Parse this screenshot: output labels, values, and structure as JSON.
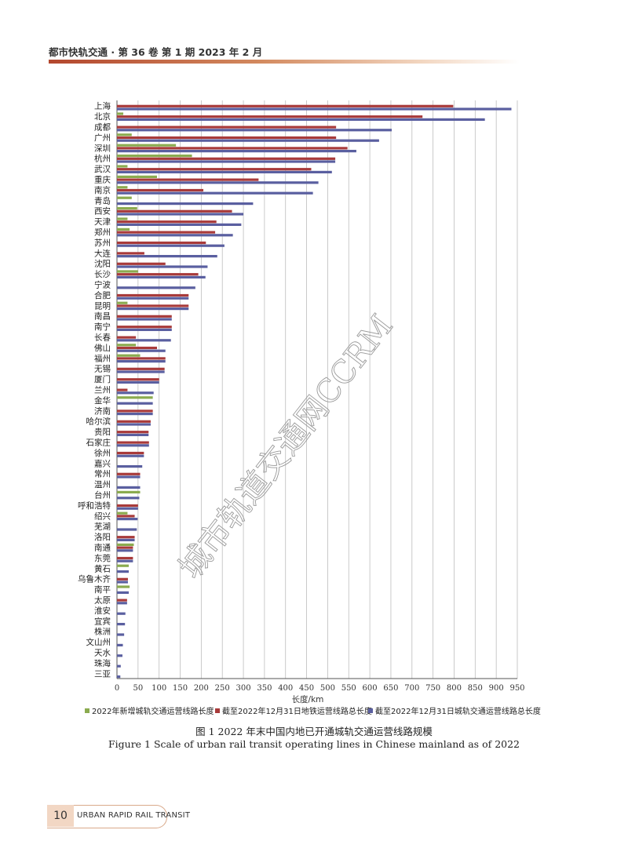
{
  "header": {
    "text": "都市快轨交通 · 第 36 卷  第 1 期  2023 年 2 月"
  },
  "figure": {
    "caption_cn": "图 1    2022 年末中国内地已开通城轨交通运营线路规模",
    "caption_en": "Figure 1    Scale of urban rail transit operating lines in Chinese mainland as of 2022"
  },
  "watermark": {
    "text": "城市轨道交通网CCRM"
  },
  "footer": {
    "page_number": "10",
    "journal_name": "URBAN RAPID RAIL TRANSIT"
  },
  "colors": {
    "new_2022": "#8bab4f",
    "metro_total": "#a83a3a",
    "urt_total": "#5a5fa0"
  },
  "chart_data": {
    "type": "bar",
    "orientation": "horizontal",
    "xlabel": "长度/km",
    "xlim": [
      0,
      950
    ],
    "xticks": [
      0,
      50,
      100,
      150,
      200,
      250,
      300,
      350,
      400,
      450,
      500,
      550,
      600,
      650,
      700,
      750,
      800,
      850,
      900,
      950
    ],
    "grid": true,
    "legend_position": "bottom",
    "categories": [
      "上海",
      "北京",
      "成都",
      "广州",
      "深圳",
      "杭州",
      "武汉",
      "重庆",
      "南京",
      "青岛",
      "西安",
      "天津",
      "郑州",
      "苏州",
      "大连",
      "沈阳",
      "长沙",
      "宁波",
      "合肥",
      "昆明",
      "南昌",
      "南宁",
      "长春",
      "佛山",
      "福州",
      "无锡",
      "厦门",
      "兰州",
      "金华",
      "济南",
      "哈尔滨",
      "贵阳",
      "石家庄",
      "徐州",
      "嘉兴",
      "常州",
      "温州",
      "台州",
      "呼和浩特",
      "绍兴",
      "芜湖",
      "洛阳",
      "南通",
      "东莞",
      "黄石",
      "乌鲁木齐",
      "南平",
      "太原",
      "淮安",
      "宜宾",
      "株洲",
      "文山州",
      "天水",
      "珠海",
      "三亚"
    ],
    "series": [
      {
        "name": "2022年新增城轨交通运营线路长度",
        "values": [
          0,
          15,
          0,
          35,
          140,
          178,
          25,
          95,
          25,
          35,
          48,
          25,
          30,
          0,
          0,
          0,
          50,
          0,
          0,
          25,
          0,
          0,
          0,
          45,
          55,
          0,
          0,
          0,
          85,
          0,
          0,
          0,
          0,
          0,
          0,
          0,
          0,
          55,
          0,
          25,
          0,
          0,
          40,
          0,
          28,
          0,
          30,
          0,
          0,
          0,
          0,
          0,
          0,
          0,
          0
        ]
      },
      {
        "name": "截至2022年12月31日地铁运营线路总长度",
        "values": [
          798,
          725,
          520,
          520,
          547,
          518,
          461,
          336,
          205,
          0,
          273,
          236,
          233,
          211,
          65,
          115,
          193,
          0,
          170,
          170,
          130,
          130,
          45,
          95,
          115,
          113,
          100,
          25,
          0,
          85,
          80,
          75,
          76,
          64,
          0,
          55,
          0,
          0,
          50,
          42,
          0,
          42,
          38,
          38,
          0,
          26,
          0,
          24,
          0,
          0,
          0,
          0,
          0,
          0,
          0
        ]
      },
      {
        "name": "截至2022年12月31日城轨交通运营线路总长度",
        "values": [
          936,
          873,
          652,
          622,
          568,
          518,
          510,
          478,
          465,
          323,
          300,
          295,
          275,
          255,
          238,
          215,
          210,
          186,
          170,
          170,
          130,
          130,
          128,
          115,
          115,
          113,
          100,
          87,
          85,
          85,
          80,
          75,
          76,
          64,
          60,
          55,
          55,
          53,
          50,
          49,
          47,
          42,
          38,
          38,
          28,
          26,
          28,
          24,
          20,
          19,
          17,
          14,
          13,
          9,
          8
        ]
      }
    ]
  }
}
